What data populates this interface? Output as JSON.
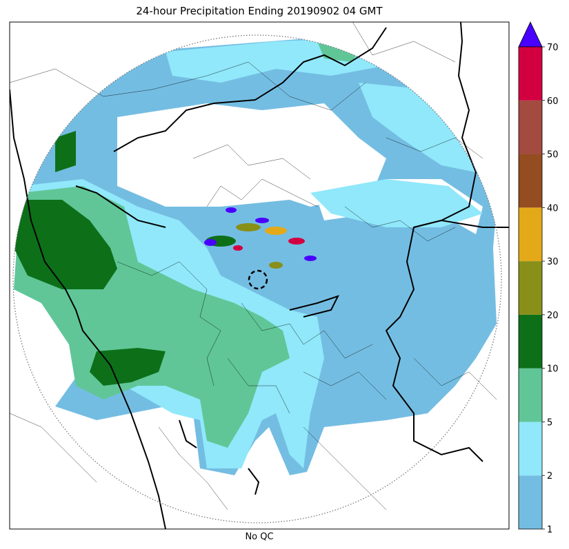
{
  "title": "24-hour Precipitation Ending 20190902 04 GMT",
  "footer": "No QC",
  "map": {
    "radar_range_ring": "dotted",
    "radar_site_marker": "dashed-circle"
  },
  "colorbar": {
    "ticks": [
      "1",
      "2",
      "5",
      "10",
      "20",
      "30",
      "40",
      "50",
      "60",
      "70"
    ],
    "colors": [
      "#74bde2",
      "#90e8fa",
      "#60c697",
      "#0d7019",
      "#889019",
      "#e4a918",
      "#944c21",
      "#a34a41",
      "#d20041"
    ],
    "extend_color": "#4800ff"
  }
}
